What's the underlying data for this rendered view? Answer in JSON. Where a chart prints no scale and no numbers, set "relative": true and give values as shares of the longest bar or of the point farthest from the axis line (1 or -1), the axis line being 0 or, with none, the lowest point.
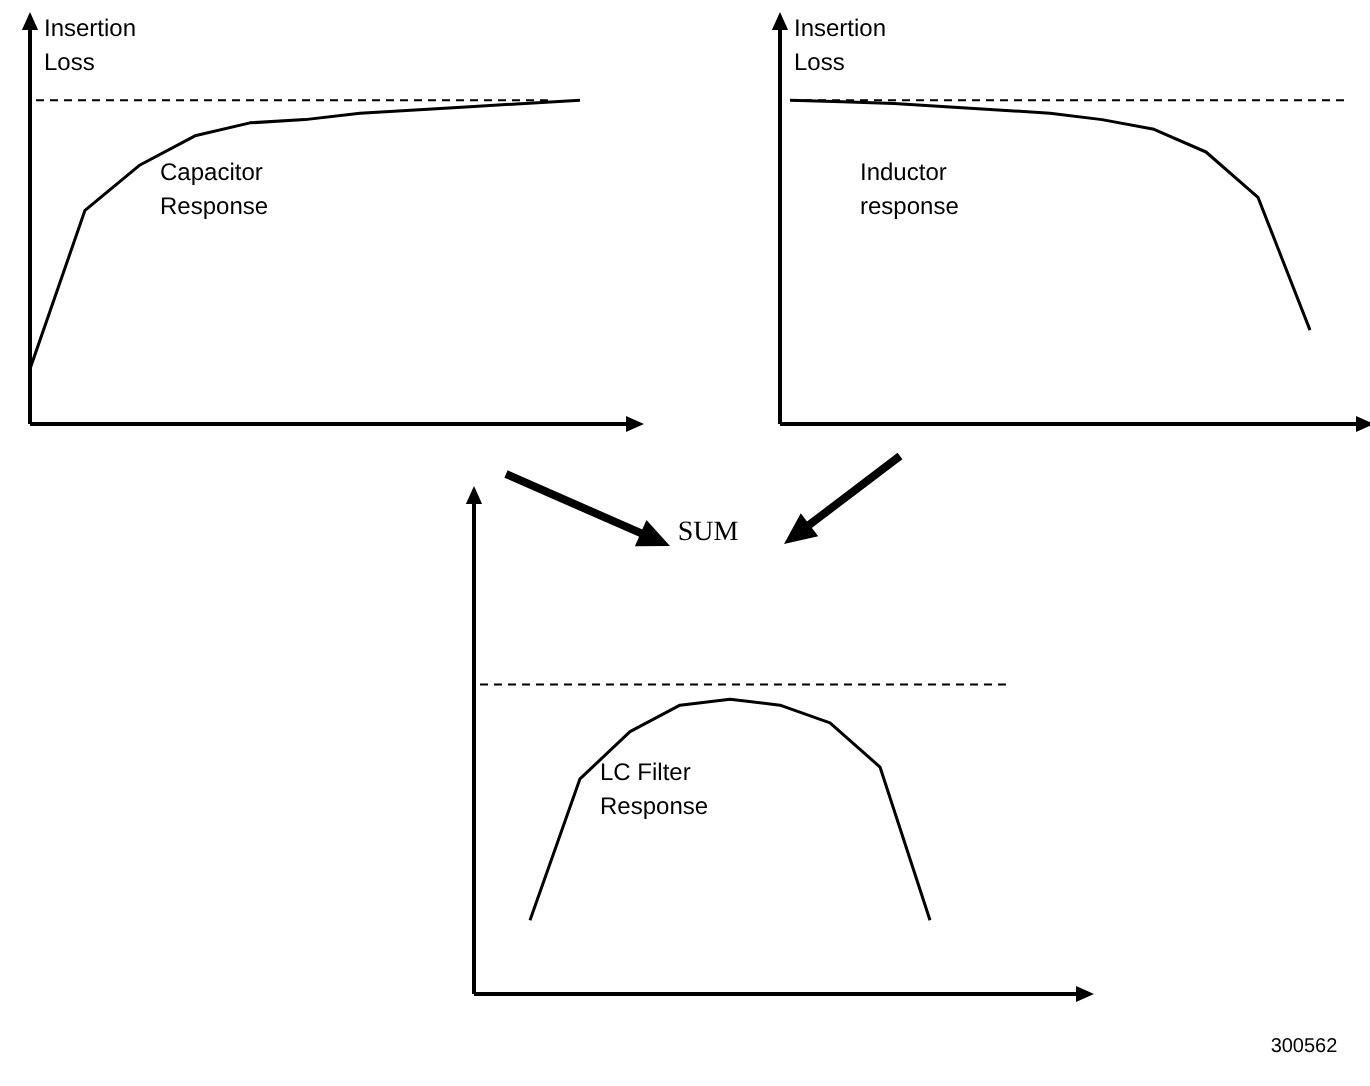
{
  "chart_data": [
    {
      "type": "line",
      "ylabel": "Insertion Loss",
      "relative": true,
      "categories": [
        null,
        null,
        null,
        null,
        null,
        null,
        null,
        null,
        null,
        null,
        null,
        null
      ],
      "series": [
        {
          "color": "#000000",
          "values": [
            0.17,
            0.66,
            0.8,
            0.89,
            0.93,
            0.94,
            0.96,
            0.97,
            0.98,
            0.99,
            1,
            null
          ]
        }
      ],
      "ref_lines": [
        {
          "axis": "y",
          "value": 1,
          "line_style": "dashed",
          "color": "#000000"
        }
      ],
      "annotations": [
        "Capacitor Response"
      ]
    },
    {
      "type": "line",
      "ylabel": "Insertion Loss",
      "relative": true,
      "categories": [
        null,
        null,
        null,
        null,
        null,
        null,
        null,
        null,
        null,
        null,
        null,
        null
      ],
      "series": [
        {
          "color": "#000000",
          "values": [
            1,
            0.995,
            0.99,
            0.98,
            0.97,
            0.96,
            0.94,
            0.91,
            0.84,
            0.7,
            0.29,
            null
          ]
        }
      ],
      "ref_lines": [
        {
          "axis": "y",
          "value": 1,
          "line_style": "dashed",
          "color": "#000000"
        }
      ],
      "annotations": [
        "Inductor response"
      ]
    },
    {
      "type": "line",
      "title": "SUM",
      "relative": true,
      "categories": [
        null,
        null,
        null,
        null,
        null,
        null,
        null,
        null,
        null,
        null,
        null,
        null
      ],
      "series": [
        {
          "color": "#000000",
          "values": [
            0.25,
            0.73,
            0.89,
            0.98,
            1,
            0.98,
            0.92,
            0.77,
            0.25,
            null,
            null,
            null
          ]
        }
      ],
      "ref_lines": [
        {
          "axis": "y",
          "value": 1.05,
          "line_style": "dashed",
          "color": "#000000"
        }
      ],
      "annotations": [
        "LC Filter Response",
        "300562"
      ]
    }
  ]
}
